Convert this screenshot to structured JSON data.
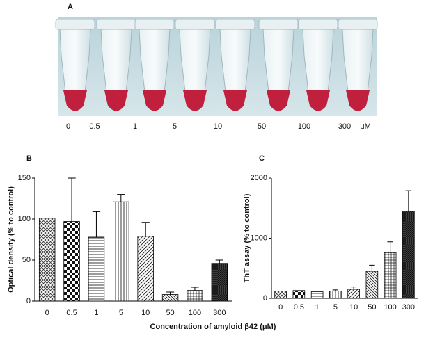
{
  "panel_a": {
    "label": "A",
    "concentrations": [
      "0",
      "0.5",
      "1",
      "5",
      "10",
      "50",
      "100",
      "300"
    ],
    "unit": "μM"
  },
  "x_axis_label": "Concentration of amyloid β42 (μM)",
  "chart_data": [
    {
      "type": "bar",
      "panel_label": "B",
      "y_label": "Optical density  (% to control)",
      "categories": [
        "0",
        "0.5",
        "1",
        "5",
        "10",
        "50",
        "100",
        "300"
      ],
      "values": [
        101,
        97,
        78,
        121,
        79,
        8,
        13,
        46
      ],
      "errors": [
        0,
        53,
        31,
        9,
        17,
        3,
        4,
        4
      ],
      "ylim": [
        0,
        150
      ],
      "yticks": [
        0,
        50,
        100,
        150
      ]
    },
    {
      "type": "bar",
      "panel_label": "C",
      "y_label": "ThT assay (% to control)",
      "categories": [
        "0",
        "0.5",
        "1",
        "5",
        "10",
        "50",
        "100",
        "300"
      ],
      "values": [
        120,
        130,
        110,
        120,
        150,
        450,
        760,
        1450
      ],
      "errors": [
        0,
        0,
        0,
        20,
        40,
        100,
        180,
        340
      ],
      "ylim": [
        0,
        2000
      ],
      "yticks": [
        0,
        1000,
        2000
      ]
    }
  ]
}
